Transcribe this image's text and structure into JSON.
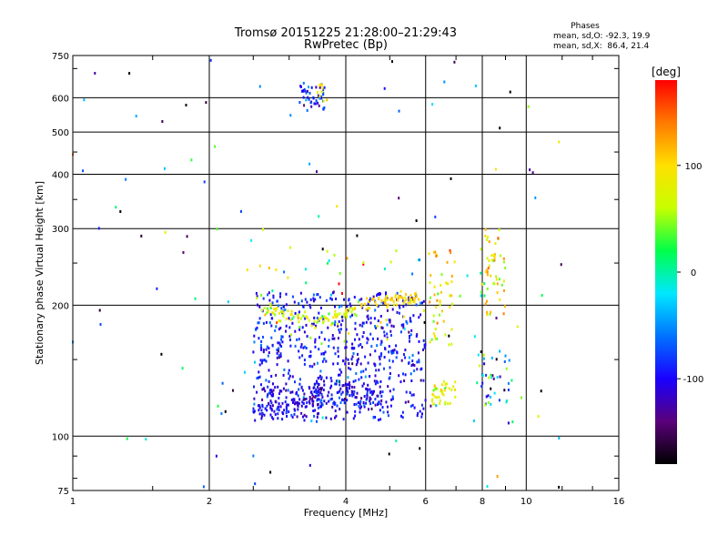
{
  "chart_data": {
    "type": "scatter",
    "title": "Tromsø 20151225 21:28:00–21:29:43",
    "subtitle": "RwPretec (Bp)",
    "stats": {
      "heading": "Phases",
      "line_o": "mean, sd,O: -92.3, 19.9",
      "line_x": "mean, sd,X:  86.4, 21.4"
    },
    "xlabel": "Frequency [MHz]",
    "ylabel": "Stationary phase Virtual Height [km]",
    "x_scale": "log",
    "y_scale": "log",
    "xlim": [
      1,
      16
    ],
    "ylim": [
      75,
      750
    ],
    "x_ticks": [
      1,
      2,
      4,
      6,
      8,
      10,
      16
    ],
    "x_tick_labels": [
      "1",
      "2",
      "4",
      "6",
      "8",
      "10",
      "16"
    ],
    "y_ticks": [
      75,
      100,
      200,
      300,
      400,
      500,
      600,
      750
    ],
    "y_tick_labels": [
      "75",
      "100",
      "200",
      "300",
      "400",
      "500",
      "600",
      "750"
    ],
    "grid": true,
    "colorbar": {
      "label": "[deg]",
      "range": [
        -180,
        180
      ],
      "ticks": [
        -100,
        0,
        100
      ],
      "tick_labels": [
        "-100",
        "0",
        "100"
      ],
      "colormap": [
        "#000000",
        "#5a007a",
        "#1a00ff",
        "#0072ff",
        "#00e8ff",
        "#00ff4a",
        "#c8ff00",
        "#ffe000",
        "#ff7a00",
        "#ff0000"
      ]
    },
    "clusters": [
      {
        "x": [
          3.15,
          3.6
        ],
        "y": [
          560,
          650
        ],
        "phase": -90,
        "spread": 25,
        "n": 45
      },
      {
        "x": [
          3.45,
          3.65
        ],
        "y": [
          585,
          650
        ],
        "phase": 95,
        "spread": 15,
        "n": 10
      },
      {
        "x": [
          2.5,
          6.0
        ],
        "y": [
          108,
          215
        ],
        "phase": -95,
        "spread": 20,
        "n": 650
      },
      {
        "x": [
          2.5,
          3.6
        ],
        "y": [
          112,
          130
        ],
        "phase": -105,
        "spread": 15,
        "n": 110
      },
      {
        "x": [
          3.4,
          4.8
        ],
        "y": [
          118,
          132
        ],
        "phase": -100,
        "spread": 20,
        "n": 90
      },
      {
        "x": [
          6.2,
          7.0
        ],
        "y": [
          118,
          135
        ],
        "phase": 80,
        "spread": 25,
        "n": 40
      },
      {
        "x": [
          6.1,
          7.0
        ],
        "y": [
          160,
          270
        ],
        "phase": 90,
        "spread": 30,
        "n": 50
      },
      {
        "x": [
          7.9,
          9.0
        ],
        "y": [
          190,
          300
        ],
        "phase": 80,
        "spread": 40,
        "n": 55
      },
      {
        "x": [
          7.8,
          9.3
        ],
        "y": [
          118,
          160
        ],
        "phase": -40,
        "spread": 80,
        "n": 40
      },
      {
        "x": [
          1.0,
          12.0
        ],
        "y": [
          75,
          750
        ],
        "phase": -60,
        "spread": 110,
        "n": 120
      },
      {
        "x": [
          2.5,
          6.0
        ],
        "y": [
          150,
          300
        ],
        "phase": 60,
        "spread": 60,
        "n": 45
      }
    ],
    "traces": [
      {
        "x": [
          2.6,
          3.0,
          3.4,
          3.8,
          4.2
        ],
        "y": [
          196,
          190,
          185,
          188,
          195
        ],
        "phase": 75,
        "spread": 20,
        "n": 90
      },
      {
        "x": [
          4.3,
          4.8,
          5.3,
          5.8
        ],
        "y": [
          197,
          205,
          208,
          207
        ],
        "phase": 100,
        "spread": 10,
        "n": 70
      }
    ]
  }
}
